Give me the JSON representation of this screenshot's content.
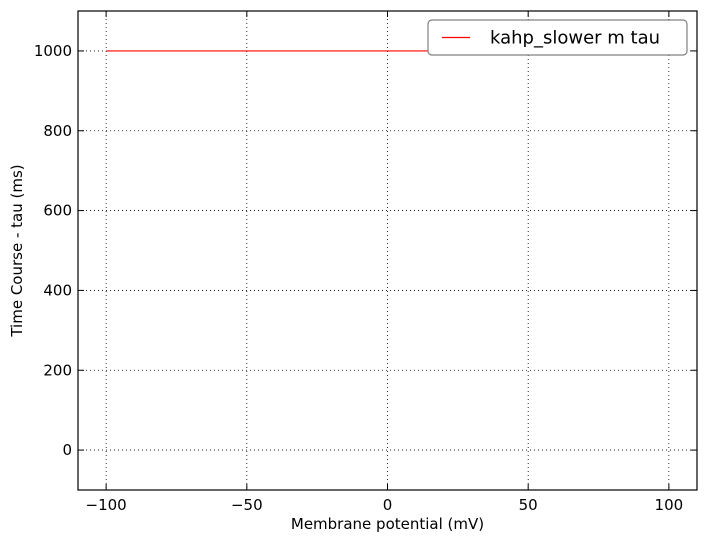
{
  "chart_data": {
    "type": "line",
    "xlabel": "Membrane potential (mV)",
    "ylabel": "Time Course - tau (ms)",
    "xlim": [
      -110,
      110
    ],
    "ylim": [
      -100,
      1100
    ],
    "xticks": [
      -100,
      -50,
      0,
      50,
      100
    ],
    "yticks": [
      0,
      200,
      400,
      600,
      800,
      1000
    ],
    "xtick_labels": [
      "−100",
      "−50",
      "0",
      "50",
      "100"
    ],
    "ytick_labels": [
      "0",
      "200",
      "400",
      "600",
      "800",
      "1000"
    ],
    "grid": true,
    "legend_position": "top-right",
    "series": [
      {
        "name": "kahp_slower m tau",
        "color": "#ff0000",
        "x": [
          -100,
          -50,
          0,
          50,
          100
        ],
        "y": [
          1000,
          1000,
          1000,
          1000,
          1000
        ]
      }
    ]
  }
}
